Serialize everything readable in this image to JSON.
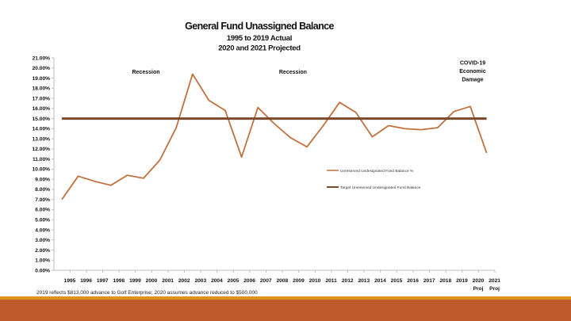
{
  "colors": {
    "series_line": "#c0713f",
    "target_line": "#7a4a2a",
    "footer_thin": "#e0921e",
    "footer_thick": "#bf5a2b",
    "axis": "#bdbdbd"
  },
  "footer": {
    "note": "2019 reflects $813,000 advance to Golf Enterprise; 2020 assumes advance reduced to $500,000"
  },
  "chart_data": {
    "type": "line",
    "title": "General Fund Unassigned Balance",
    "subtitle_lines": [
      "1995 to 2019 Actual",
      "2020 and 2021 Projected"
    ],
    "xlabel": "",
    "ylabel": "",
    "categories": [
      "1995",
      "1996",
      "1997",
      "1998",
      "1999",
      "2000",
      "2001",
      "2002",
      "2003",
      "2004",
      "2005",
      "2006",
      "2007",
      "2008",
      "2009",
      "2010",
      "2011",
      "2012",
      "2013",
      "2014",
      "2015",
      "2016",
      "2017",
      "2018",
      "2019",
      "2020",
      "2021"
    ],
    "category_sublabels": {
      "2020": "Proj",
      "2021": "Proj"
    },
    "ylim": [
      0,
      21
    ],
    "y_ticks": [
      0,
      1,
      2,
      3,
      4,
      5,
      6,
      7,
      8,
      9,
      10,
      11,
      12,
      13,
      14,
      15,
      16,
      17,
      18,
      19,
      20,
      21
    ],
    "y_tick_format": "percent_2dp",
    "grid": false,
    "legend_position": "right",
    "series": [
      {
        "name": "Unreserved Undesignated Fund Balance %",
        "values": [
          7.0,
          9.3,
          8.8,
          8.4,
          9.4,
          9.1,
          10.9,
          14.1,
          19.4,
          16.8,
          15.8,
          11.2,
          16.1,
          14.5,
          13.1,
          12.2,
          14.3,
          16.6,
          15.6,
          13.2,
          14.3,
          14.0,
          13.9,
          14.1,
          15.7,
          16.2,
          11.6
        ]
      },
      {
        "name": "Target Unreserved Undesignated Fund Balance",
        "values": [
          15.0,
          15.0,
          15.0,
          15.0,
          15.0,
          15.0,
          15.0,
          15.0,
          15.0,
          15.0,
          15.0,
          15.0,
          15.0,
          15.0,
          15.0,
          15.0,
          15.0,
          15.0,
          15.0,
          15.0,
          15.0,
          15.0,
          15.0,
          15.0,
          15.0,
          15.0,
          15.0
        ]
      }
    ],
    "annotations": [
      {
        "text_lines": [
          "Recession"
        ],
        "x": "2000",
        "y": 19.6
      },
      {
        "text_lines": [
          "Recession"
        ],
        "x": "2009",
        "y": 19.6
      },
      {
        "text_lines": [
          "COVID-19",
          "Economic",
          "Damage"
        ],
        "x": "2020",
        "y": 20.5
      }
    ]
  }
}
